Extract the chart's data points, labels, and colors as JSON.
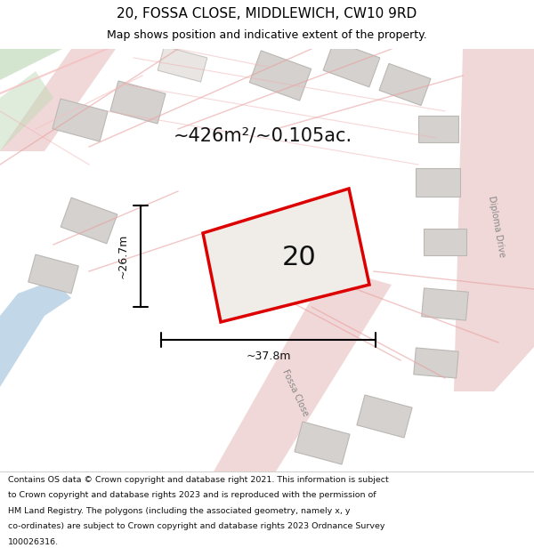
{
  "title_line1": "20, FOSSA CLOSE, MIDDLEWICH, CW10 9RD",
  "title_line2": "Map shows position and indicative extent of the property.",
  "area_text": "~426m²/~0.105ac.",
  "label_number": "20",
  "dim_width": "~37.8m",
  "dim_height": "~26.7m",
  "map_bg": "#f2f0ed",
  "building_color": "#d4d1ce",
  "building_edge": "#bbb8b4",
  "road_fill": "#ecc8c8",
  "road_line": "#e8a0a0",
  "border_color": "#dd0000",
  "plot_fill": "#f0ede8",
  "water_color": "#a8c8e0",
  "green_color": "#b8d4b0",
  "diplon_drive_text": "Diploma Drive",
  "fossa_close_text": "Fossa Close",
  "footer_lines": [
    "Contains OS data © Crown copyright and database right 2021. This information is subject",
    "to Crown copyright and database rights 2023 and is reproduced with the permission of",
    "HM Land Registry. The polygons (including the associated geometry, namely x, y",
    "co-ordinates) are subject to Crown copyright and database rights 2023 Ordnance Survey",
    "100026316."
  ]
}
